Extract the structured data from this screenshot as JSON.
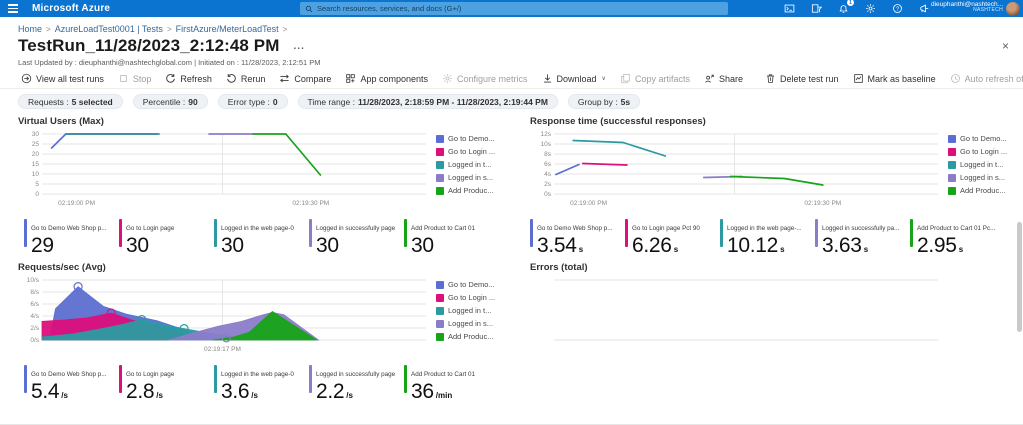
{
  "header": {
    "product_name": "Microsoft Azure",
    "search_placeholder": "Search resources, services, and docs (G+/)",
    "notification_badge": "1",
    "account_email": "dieuphanthi@nashtech...",
    "account_tenant": "NASHTECH"
  },
  "breadcrumb": [
    "Home",
    "AzureLoadTest0001 | Tests",
    "FirstAzure/MeterLoadTest"
  ],
  "page": {
    "title": "TestRun_11/28/2023_2:12:48 PM",
    "more_label": "...",
    "close_glyph": "×",
    "subtitle": "Last Updated by : dieuphanthi@nashtechglobal.com | Initiated on : 11/28/2023, 2:12:51 PM"
  },
  "toolbar": [
    {
      "label": "View all test runs",
      "icon": "view-all",
      "enabled": true
    },
    {
      "label": "Stop",
      "icon": "stop",
      "enabled": false
    },
    {
      "label": "Refresh",
      "icon": "refresh",
      "enabled": true
    },
    {
      "label": "Rerun",
      "icon": "rerun",
      "enabled": true
    },
    {
      "label": "Compare",
      "icon": "compare",
      "enabled": true
    },
    {
      "label": "App components",
      "icon": "app-components",
      "enabled": true
    },
    {
      "label": "Configure metrics",
      "icon": "configure-metrics",
      "enabled": false
    },
    {
      "label": "Download",
      "icon": "download",
      "enabled": true,
      "dropdown": true
    },
    {
      "label": "Copy artifacts",
      "icon": "copy",
      "enabled": false
    },
    {
      "label": "Share",
      "icon": "share",
      "enabled": true
    },
    {
      "separator": true
    },
    {
      "label": "Delete test run",
      "icon": "delete",
      "enabled": true
    },
    {
      "label": "Mark as baseline",
      "icon": "baseline",
      "enabled": true
    },
    {
      "label": "Auto refresh off",
      "icon": "clock",
      "enabled": false
    }
  ],
  "toolbar_dropdown_glyph": "∨",
  "filters": [
    {
      "label": "Requests :",
      "value": "5 selected"
    },
    {
      "label": "Percentile :",
      "value": "90"
    },
    {
      "label": "Error type :",
      "value": "0"
    },
    {
      "label": "Time range :",
      "value": "11/28/2023, 2:18:59 PM - 11/28/2023, 2:19:44 PM"
    },
    {
      "label": "Group by :",
      "value": "5s"
    }
  ],
  "series_colors": [
    "#5c6fd0",
    "#dc0f7c",
    "#2b9ba1",
    "#8b7cc9",
    "#18a318"
  ],
  "legend_labels": [
    "Go to Demo...",
    "Go to Login ...",
    "Logged in t...",
    "Logged in s...",
    "Add Produc..."
  ],
  "chart_data": [
    {
      "type": "line",
      "title": "Virtual Users (Max)",
      "ylim": [
        0,
        30
      ],
      "yticks": [
        {
          "v": 0,
          "label": "0"
        },
        {
          "v": 5,
          "label": "5"
        },
        {
          "v": 10,
          "label": "10"
        },
        {
          "v": 15,
          "label": "15"
        },
        {
          "v": 20,
          "label": "20"
        },
        {
          "v": 25,
          "label": "25"
        },
        {
          "v": 30,
          "label": "30"
        }
      ],
      "xticks": [
        {
          "pos": 0.09,
          "label": "02:19:00 PM"
        },
        {
          "pos": 0.7,
          "label": "02:19:30 PM"
        }
      ],
      "vline": 0.47,
      "legend": true,
      "series": [
        {
          "name": "Go to Demo Web Shop page",
          "color": 0,
          "points": [
            [
              0.025,
              23
            ],
            [
              0.062,
              30
            ]
          ]
        },
        {
          "name": "Go to Login page",
          "color": 1,
          "points": [
            [
              0.062,
              30
            ],
            [
              0.3,
              30
            ]
          ]
        },
        {
          "name": "Logged in the web page",
          "color": 2,
          "points": [
            [
              0.062,
              30
            ],
            [
              0.305,
              30
            ]
          ]
        },
        {
          "name": "Logged in successfully page",
          "color": 3,
          "points": [
            [
              0.435,
              30
            ],
            [
              0.55,
              30
            ]
          ]
        },
        {
          "name": "Add Product to Cart 01",
          "color": 4,
          "points": [
            [
              0.55,
              30
            ],
            [
              0.635,
              30
            ],
            [
              0.725,
              9.5
            ]
          ]
        }
      ]
    },
    {
      "type": "line",
      "title": "Response time (successful responses)",
      "ylim": [
        0,
        12
      ],
      "yticks": [
        {
          "v": 0,
          "label": "0s"
        },
        {
          "v": 2,
          "label": "2s"
        },
        {
          "v": 4,
          "label": "4s"
        },
        {
          "v": 6,
          "label": "6s"
        },
        {
          "v": 8,
          "label": "8s"
        },
        {
          "v": 10,
          "label": "10s"
        },
        {
          "v": 12,
          "label": "12s"
        }
      ],
      "xticks": [
        {
          "pos": 0.09,
          "label": "02:19:00 PM"
        },
        {
          "pos": 0.7,
          "label": "02:19:30 PM"
        }
      ],
      "vline": 0.47,
      "legend": true,
      "series": [
        {
          "name": "Go to Demo Web Shop page",
          "color": 0,
          "points": [
            [
              0.005,
              3.9
            ],
            [
              0.065,
              5.9
            ]
          ]
        },
        {
          "name": "Go to Login page",
          "color": 1,
          "points": [
            [
              0.075,
              6.1
            ],
            [
              0.19,
              5.8
            ]
          ]
        },
        {
          "name": "Logged in the web page",
          "color": 2,
          "points": [
            [
              0.05,
              10.7
            ],
            [
              0.18,
              10.3
            ],
            [
              0.29,
              7.6
            ]
          ]
        },
        {
          "name": "Logged in successfully page",
          "color": 3,
          "points": [
            [
              0.39,
              3.3
            ],
            [
              0.49,
              3.5
            ]
          ]
        },
        {
          "name": "Add Product to Cart 01",
          "color": 4,
          "points": [
            [
              0.46,
              3.5
            ],
            [
              0.6,
              3.1
            ],
            [
              0.7,
              1.8
            ]
          ]
        }
      ]
    },
    {
      "type": "area",
      "title": "Requests/sec (Avg)",
      "ylim": [
        0,
        10
      ],
      "yticks": [
        {
          "v": 0,
          "label": "0/s"
        },
        {
          "v": 2,
          "label": "2/s"
        },
        {
          "v": 4,
          "label": "4/s"
        },
        {
          "v": 6,
          "label": "6/s"
        },
        {
          "v": 8,
          "label": "8/s"
        },
        {
          "v": 10,
          "label": "10/s"
        }
      ],
      "xticks": [
        {
          "pos": 0.47,
          "label": "02:19:17 PM"
        }
      ],
      "vline": 0.47,
      "legend": true,
      "series": [
        {
          "name": "Go to Demo Web Shop page",
          "color": 0,
          "points": [
            [
              0.02,
              0
            ],
            [
              0.035,
              5.2
            ],
            [
              0.094,
              8.9
            ],
            [
              0.16,
              5.6
            ],
            [
              0.22,
              4.3
            ],
            [
              0.3,
              3.2
            ],
            [
              0.38,
              1.5
            ],
            [
              0.44,
              0
            ]
          ]
        },
        {
          "name": "Go to Login page",
          "color": 1,
          "points": [
            [
              0,
              3.1
            ],
            [
              0.06,
              3.35
            ],
            [
              0.12,
              3.7
            ],
            [
              0.18,
              4.5
            ],
            [
              0.24,
              3.2
            ],
            [
              0.3,
              2.2
            ],
            [
              0.36,
              1.1
            ],
            [
              0.42,
              0
            ]
          ]
        },
        {
          "name": "Logged in the web page",
          "color": 2,
          "points": [
            [
              0,
              0.5
            ],
            [
              0.08,
              1.0
            ],
            [
              0.15,
              1.8
            ],
            [
              0.21,
              2.6
            ],
            [
              0.26,
              3.4
            ],
            [
              0.32,
              2.5
            ],
            [
              0.37,
              1.9
            ],
            [
              0.43,
              1.2
            ],
            [
              0.5,
              0.5
            ],
            [
              0.57,
              0.1
            ],
            [
              0.6,
              0
            ]
          ]
        },
        {
          "name": "Logged in successfully page",
          "color": 3,
          "points": [
            [
              0.33,
              0
            ],
            [
              0.4,
              1.3
            ],
            [
              0.46,
              2.3
            ],
            [
              0.52,
              3.1
            ],
            [
              0.57,
              4.1
            ],
            [
              0.6,
              4.6
            ],
            [
              0.63,
              4.2
            ],
            [
              0.72,
              0
            ]
          ]
        },
        {
          "name": "Add Product to Cart 01",
          "color": 4,
          "points": [
            [
              0.445,
              0
            ],
            [
              0.5,
              0.5
            ],
            [
              0.54,
              1.3
            ],
            [
              0.6,
              4.75
            ],
            [
              0.715,
              0
            ]
          ]
        }
      ],
      "markers": [
        {
          "x": 0.094,
          "y": 8.9,
          "color": 0
        },
        {
          "x": 0.18,
          "y": 4.5,
          "color": 1
        },
        {
          "x": 0.26,
          "y": 3.4,
          "color": 2
        },
        {
          "x": 0.37,
          "y": 1.9,
          "color": 2
        },
        {
          "x": 0.48,
          "y": 0.35,
          "color": 3
        }
      ]
    },
    {
      "type": "empty",
      "title": "Errors (total)",
      "legend": false
    }
  ],
  "stats_rows": [
    {
      "cards": [
        {
          "label": "Go to Demo Web Shop p...",
          "value": "29",
          "unit": "",
          "color": 0
        },
        {
          "label": "Go to Login page",
          "value": "30",
          "unit": "",
          "color": 1
        },
        {
          "label": "Logged in the web page-0",
          "value": "30",
          "unit": "",
          "color": 2
        },
        {
          "label": "Logged in successfully page",
          "value": "30",
          "unit": "",
          "color": 3
        },
        {
          "label": "Add Product to Cart 01",
          "value": "30",
          "unit": "",
          "color": 4
        }
      ]
    },
    {
      "cards": [
        {
          "label": "Go to Demo Web Shop p...",
          "value": "3.54",
          "unit": "s",
          "color": 0
        },
        {
          "label": "Go to Login page Pct 90",
          "value": "6.26",
          "unit": "s",
          "color": 1
        },
        {
          "label": "Logged in the web page-...",
          "value": "10.12",
          "unit": "s",
          "color": 2
        },
        {
          "label": "Logged in successfully pa...",
          "value": "3.63",
          "unit": "s",
          "color": 3
        },
        {
          "label": "Add Product to Cart 01 Pc...",
          "value": "2.95",
          "unit": "s",
          "color": 4
        }
      ]
    },
    {
      "cards": [
        {
          "label": "Go to Demo Web Shop p...",
          "value": "5.4",
          "unit": "/s",
          "color": 0
        },
        {
          "label": "Go to Login page",
          "value": "2.8",
          "unit": "/s",
          "color": 1
        },
        {
          "label": "Logged in the web page-0",
          "value": "3.6",
          "unit": "/s",
          "color": 2
        },
        {
          "label": "Logged in successfully page",
          "value": "2.2",
          "unit": "/s",
          "color": 3
        },
        {
          "label": "Add Product to Cart 01",
          "value": "36",
          "unit": "/min",
          "color": 4
        }
      ]
    }
  ]
}
